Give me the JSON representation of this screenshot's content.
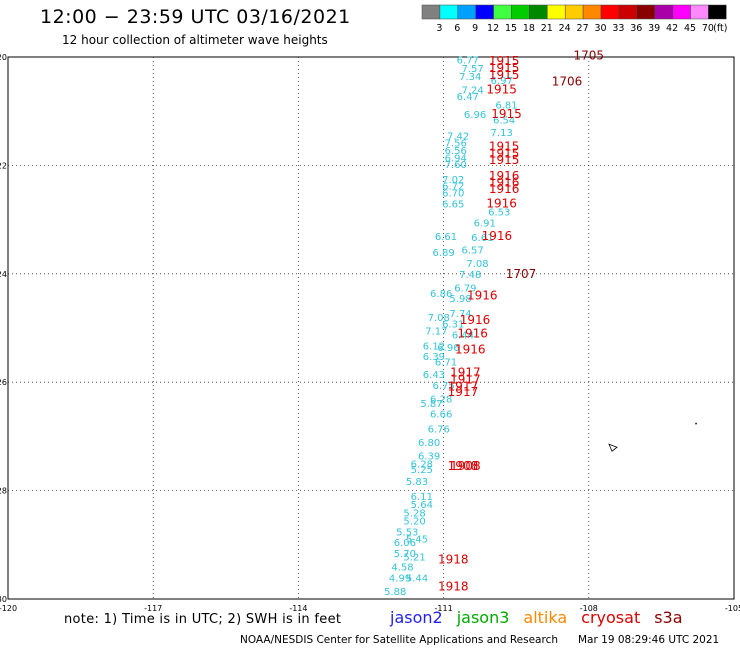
{
  "header": {
    "title": "12:00 − 23:59 UTC 03/16/2021",
    "subtitle": "12 hour collection of altimeter wave heights"
  },
  "legend": {
    "unit": "(ft)",
    "bins": [
      {
        "label": "3",
        "color": "#808080"
      },
      {
        "label": "6",
        "color": "#00ffff"
      },
      {
        "label": "9",
        "color": "#00a0ff"
      },
      {
        "label": "12",
        "color": "#0000ff"
      },
      {
        "label": "15",
        "color": "#40ff40"
      },
      {
        "label": "18",
        "color": "#00cc00"
      },
      {
        "label": "21",
        "color": "#008800"
      },
      {
        "label": "24",
        "color": "#ffff00"
      },
      {
        "label": "27",
        "color": "#ffcc00"
      },
      {
        "label": "30",
        "color": "#ff8800"
      },
      {
        "label": "33",
        "color": "#ff0000"
      },
      {
        "label": "36",
        "color": "#cc0000"
      },
      {
        "label": "39",
        "color": "#880000"
      },
      {
        "label": "42",
        "color": "#aa00aa"
      },
      {
        "label": "45",
        "color": "#ff00ff"
      },
      {
        "label": "70",
        "color": "#ff88ff"
      },
      {
        "label": "",
        "color": "#000000"
      }
    ]
  },
  "map": {
    "lon_range": [
      -120,
      -105
    ],
    "lat_range": [
      -30,
      -20
    ],
    "lon_ticks": [
      "-120",
      "-117",
      "-114",
      "-111",
      "-108",
      "-105"
    ],
    "lat_ticks": [
      "-20",
      "-22",
      "-24",
      "-26",
      "-28",
      "-30"
    ],
    "lon_tick_values": [
      -120,
      -117,
      -114,
      -111,
      -108,
      -105
    ],
    "lat_tick_values": [
      -20,
      -22,
      -24,
      -26,
      -28,
      -30
    ],
    "grid": "dotted"
  },
  "observations": [
    {
      "text": "6.77",
      "lon": -110.5,
      "lat": -20.05,
      "color": "#35c3d9"
    },
    {
      "text": "7.57",
      "lon": -110.4,
      "lat": -20.2,
      "color": "#35c3d9"
    },
    {
      "text": "7.34",
      "lon": -110.45,
      "lat": -20.35,
      "color": "#35c3d9"
    },
    {
      "text": "6.97",
      "lon": -109.8,
      "lat": -20.42,
      "color": "#35c3d9"
    },
    {
      "text": "7.24",
      "lon": -110.4,
      "lat": -20.6,
      "color": "#35c3d9"
    },
    {
      "text": "6.47",
      "lon": -110.5,
      "lat": -20.72,
      "color": "#35c3d9"
    },
    {
      "text": "6.81",
      "lon": -109.7,
      "lat": -20.88,
      "color": "#35c3d9"
    },
    {
      "text": "6.96",
      "lon": -110.35,
      "lat": -21.05,
      "color": "#35c3d9"
    },
    {
      "text": "6.54",
      "lon": -109.75,
      "lat": -21.15,
      "color": "#35c3d9"
    },
    {
      "text": "7.13",
      "lon": -109.8,
      "lat": -21.38,
      "color": "#35c3d9"
    },
    {
      "text": "7.42",
      "lon": -110.7,
      "lat": -21.45,
      "color": "#35c3d9"
    },
    {
      "text": "7.56",
      "lon": -110.75,
      "lat": -21.58,
      "color": "#35c3d9"
    },
    {
      "text": "6.56",
      "lon": -110.75,
      "lat": -21.72,
      "color": "#35c3d9"
    },
    {
      "text": "6.94",
      "lon": -110.75,
      "lat": -21.85,
      "color": "#35c3d9"
    },
    {
      "text": "7.60",
      "lon": -110.75,
      "lat": -21.97,
      "color": "#35c3d9"
    },
    {
      "text": "7.02",
      "lon": -110.8,
      "lat": -22.25,
      "color": "#35c3d9"
    },
    {
      "text": "6.72",
      "lon": -110.8,
      "lat": -22.37,
      "color": "#35c3d9"
    },
    {
      "text": "6.70",
      "lon": -110.8,
      "lat": -22.5,
      "color": "#35c3d9"
    },
    {
      "text": "6.65",
      "lon": -110.8,
      "lat": -22.7,
      "color": "#35c3d9"
    },
    {
      "text": "6.53",
      "lon": -109.85,
      "lat": -22.85,
      "color": "#35c3d9"
    },
    {
      "text": "6.91",
      "lon": -110.15,
      "lat": -23.05,
      "color": "#35c3d9"
    },
    {
      "text": "6.61",
      "lon": -110.95,
      "lat": -23.3,
      "color": "#35c3d9"
    },
    {
      "text": "6.61",
      "lon": -110.2,
      "lat": -23.32,
      "color": "#35c3d9"
    },
    {
      "text": "6.57",
      "lon": -110.4,
      "lat": -23.55,
      "color": "#35c3d9"
    },
    {
      "text": "6.89",
      "lon": -111.0,
      "lat": -23.6,
      "color": "#35c3d9"
    },
    {
      "text": "7.08",
      "lon": -110.3,
      "lat": -23.8,
      "color": "#35c3d9"
    },
    {
      "text": "7.48",
      "lon": -110.45,
      "lat": -24.0,
      "color": "#35c3d9"
    },
    {
      "text": "6.79",
      "lon": -110.55,
      "lat": -24.25,
      "color": "#35c3d9"
    },
    {
      "text": "6.86",
      "lon": -111.05,
      "lat": -24.35,
      "color": "#35c3d9"
    },
    {
      "text": "5.98",
      "lon": -110.65,
      "lat": -24.45,
      "color": "#35c3d9"
    },
    {
      "text": "7.74",
      "lon": -110.65,
      "lat": -24.72,
      "color": "#35c3d9"
    },
    {
      "text": "7.08",
      "lon": -111.1,
      "lat": -24.8,
      "color": "#35c3d9"
    },
    {
      "text": "6.31",
      "lon": -110.8,
      "lat": -24.92,
      "color": "#35c3d9"
    },
    {
      "text": "7.17",
      "lon": -111.15,
      "lat": -25.05,
      "color": "#35c3d9"
    },
    {
      "text": "6.44",
      "lon": -110.6,
      "lat": -25.12,
      "color": "#35c3d9"
    },
    {
      "text": "6.96",
      "lon": -110.9,
      "lat": -25.35,
      "color": "#35c3d9"
    },
    {
      "text": "6.12",
      "lon": -111.2,
      "lat": -25.32,
      "color": "#35c3d9"
    },
    {
      "text": "6.39",
      "lon": -111.2,
      "lat": -25.52,
      "color": "#35c3d9"
    },
    {
      "text": "6.71",
      "lon": -110.95,
      "lat": -25.62,
      "color": "#35c3d9"
    },
    {
      "text": "6.43",
      "lon": -111.2,
      "lat": -25.85,
      "color": "#35c3d9"
    },
    {
      "text": "6.75",
      "lon": -111.0,
      "lat": -26.05,
      "color": "#35c3d9"
    },
    {
      "text": "6.28",
      "lon": -111.05,
      "lat": -26.3,
      "color": "#35c3d9"
    },
    {
      "text": "5.87",
      "lon": -111.25,
      "lat": -26.38,
      "color": "#35c3d9"
    },
    {
      "text": "6.66",
      "lon": -111.05,
      "lat": -26.58,
      "color": "#35c3d9"
    },
    {
      "text": "6.76",
      "lon": -111.1,
      "lat": -26.85,
      "color": "#35c3d9"
    },
    {
      "text": "6.80",
      "lon": -111.3,
      "lat": -27.1,
      "color": "#35c3d9"
    },
    {
      "text": "6.39",
      "lon": -111.3,
      "lat": -27.35,
      "color": "#35c3d9"
    },
    {
      "text": "6.28",
      "lon": -111.45,
      "lat": -27.5,
      "color": "#35c3d9"
    },
    {
      "text": "5.25",
      "lon": -111.45,
      "lat": -27.6,
      "color": "#35c3d9"
    },
    {
      "text": "5.83",
      "lon": -111.55,
      "lat": -27.82,
      "color": "#35c3d9"
    },
    {
      "text": "6.11",
      "lon": -111.45,
      "lat": -28.1,
      "color": "#35c3d9"
    },
    {
      "text": "5.64",
      "lon": -111.45,
      "lat": -28.25,
      "color": "#35c3d9"
    },
    {
      "text": "5.28",
      "lon": -111.6,
      "lat": -28.4,
      "color": "#35c3d9"
    },
    {
      "text": "5.20",
      "lon": -111.6,
      "lat": -28.55,
      "color": "#35c3d9"
    },
    {
      "text": "5.53",
      "lon": -111.75,
      "lat": -28.75,
      "color": "#35c3d9"
    },
    {
      "text": "5.45",
      "lon": -111.55,
      "lat": -28.88,
      "color": "#35c3d9"
    },
    {
      "text": "6.06",
      "lon": -111.8,
      "lat": -28.95,
      "color": "#35c3d9"
    },
    {
      "text": "5.70",
      "lon": -111.8,
      "lat": -29.15,
      "color": "#35c3d9"
    },
    {
      "text": "5.21",
      "lon": -111.6,
      "lat": -29.22,
      "color": "#35c3d9"
    },
    {
      "text": "4.58",
      "lon": -111.85,
      "lat": -29.4,
      "color": "#35c3d9"
    },
    {
      "text": "4.99",
      "lon": -111.9,
      "lat": -29.6,
      "color": "#35c3d9"
    },
    {
      "text": "5.44",
      "lon": -111.55,
      "lat": -29.6,
      "color": "#35c3d9"
    },
    {
      "text": "5.88",
      "lon": -112.0,
      "lat": -29.85,
      "color": "#35c3d9"
    }
  ],
  "time_labels": [
    {
      "text": "1915",
      "lon": -109.75,
      "lat": -20.07,
      "color": "#dd0000"
    },
    {
      "text": "1915",
      "lon": -109.75,
      "lat": -20.2,
      "color": "#dd0000"
    },
    {
      "text": "1915",
      "lon": -109.75,
      "lat": -20.33,
      "color": "#dd0000"
    },
    {
      "text": "1915",
      "lon": -109.8,
      "lat": -20.6,
      "color": "#dd0000"
    },
    {
      "text": "1915",
      "lon": -109.7,
      "lat": -21.05,
      "color": "#dd0000"
    },
    {
      "text": "1915",
      "lon": -109.75,
      "lat": -21.65,
      "color": "#dd0000"
    },
    {
      "text": "1915",
      "lon": -109.75,
      "lat": -21.78,
      "color": "#dd0000"
    },
    {
      "text": "1915",
      "lon": -109.75,
      "lat": -21.9,
      "color": "#dd0000"
    },
    {
      "text": "1916",
      "lon": -109.75,
      "lat": -22.2,
      "color": "#dd0000"
    },
    {
      "text": "1916",
      "lon": -109.75,
      "lat": -22.32,
      "color": "#dd0000"
    },
    {
      "text": "1916",
      "lon": -109.75,
      "lat": -22.44,
      "color": "#dd0000"
    },
    {
      "text": "1916",
      "lon": -109.8,
      "lat": -22.7,
      "color": "#dd0000"
    },
    {
      "text": "1916",
      "lon": -109.9,
      "lat": -23.3,
      "color": "#dd0000"
    },
    {
      "text": "1916",
      "lon": -110.2,
      "lat": -24.4,
      "color": "#dd0000"
    },
    {
      "text": "1916",
      "lon": -110.35,
      "lat": -24.85,
      "color": "#dd0000"
    },
    {
      "text": "1916",
      "lon": -110.4,
      "lat": -25.1,
      "color": "#dd0000"
    },
    {
      "text": "1916",
      "lon": -110.45,
      "lat": -25.4,
      "color": "#dd0000"
    },
    {
      "text": "1917",
      "lon": -110.55,
      "lat": -25.82,
      "color": "#dd0000"
    },
    {
      "text": "1917",
      "lon": -110.55,
      "lat": -25.95,
      "color": "#dd0000"
    },
    {
      "text": "1917",
      "lon": -110.6,
      "lat": -26.08,
      "color": "#dd0000"
    },
    {
      "text": "1917",
      "lon": -110.6,
      "lat": -26.18,
      "color": "#dd0000"
    },
    {
      "text": "1908",
      "lon": -110.6,
      "lat": -27.55,
      "color": "#dd0000"
    },
    {
      "text": "1908",
      "lon": -110.55,
      "lat": -27.55,
      "color": "#dd0000"
    },
    {
      "text": "1918",
      "lon": -110.8,
      "lat": -29.27,
      "color": "#dd0000"
    },
    {
      "text": "1918",
      "lon": -110.8,
      "lat": -29.77,
      "color": "#dd0000"
    },
    {
      "text": "1705",
      "lon": -108.0,
      "lat": -19.97,
      "color": "#880000"
    },
    {
      "text": "1706",
      "lon": -108.45,
      "lat": -20.45,
      "color": "#880000"
    },
    {
      "text": "1707",
      "lon": -109.4,
      "lat": -24.0,
      "color": "#880000"
    }
  ],
  "footer": {
    "note": "note:  1) Time is in UTC;  2) SWH is in feet",
    "satellites": [
      {
        "name": "jason2",
        "color": "#2222ee"
      },
      {
        "name": "jason3",
        "color": "#00aa00"
      },
      {
        "name": "altika",
        "color": "#ff8800"
      },
      {
        "name": "cryosat",
        "color": "#dd0000"
      },
      {
        "name": "s3a",
        "color": "#880000"
      }
    ],
    "credit": "NOAA/NESDIS Center for Satellite Applications and Research",
    "timestamp": "Mar 19 08:29:46 UTC 2021"
  }
}
